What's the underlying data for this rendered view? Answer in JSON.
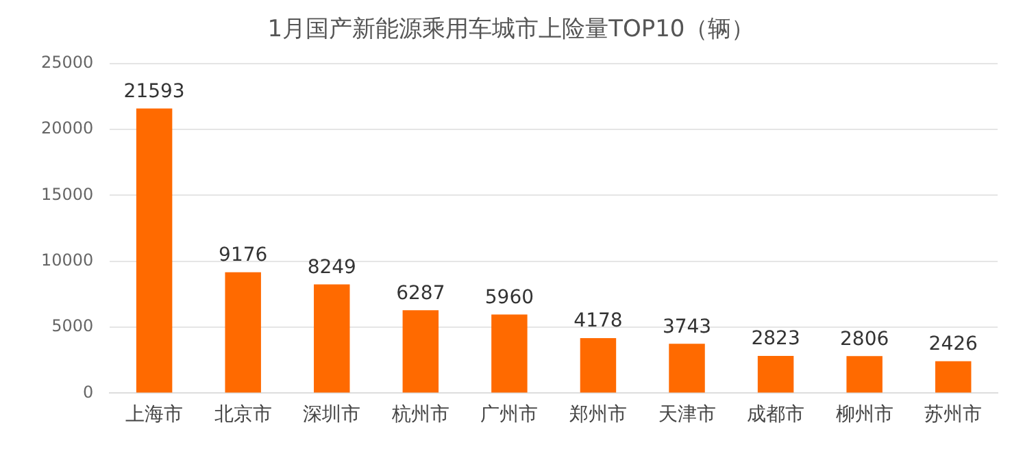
{
  "chart_data": {
    "type": "bar",
    "title": "1月国产新能源乘用车城市上险量TOP10（辆）",
    "categories": [
      "上海市",
      "北京市",
      "深圳市",
      "杭州市",
      "广州市",
      "郑州市",
      "天津市",
      "成都市",
      "柳州市",
      "苏州市"
    ],
    "values": [
      21593,
      9176,
      8249,
      6287,
      5960,
      4178,
      3743,
      2823,
      2806,
      2426
    ],
    "color": "#ff6a00",
    "ylim": [
      0,
      25000
    ],
    "yticks": [
      0,
      5000,
      10000,
      15000,
      20000,
      25000
    ],
    "grid": "y",
    "data_labels": true
  }
}
